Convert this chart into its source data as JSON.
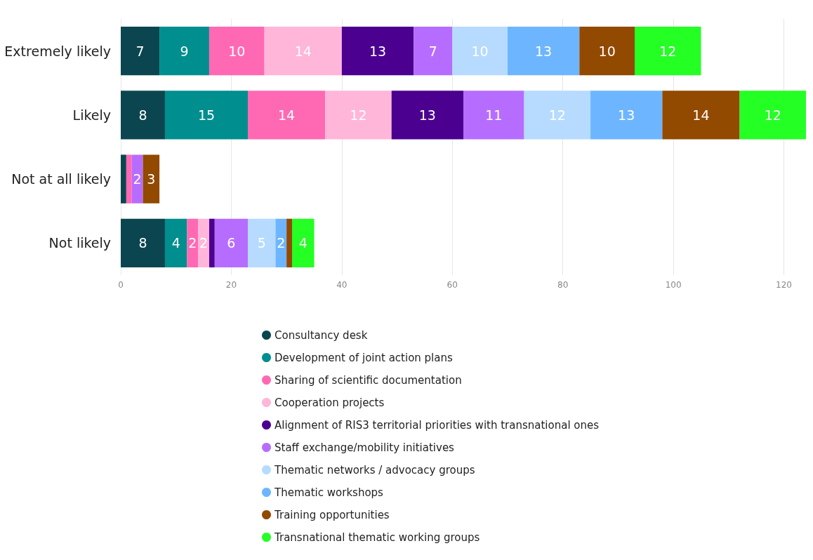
{
  "chart_data": {
    "type": "bar",
    "orientation": "horizontal",
    "stacked": true,
    "categories": [
      "Extremely likely",
      "Likely",
      "Not at all likely",
      "Not likely"
    ],
    "xlim": [
      0,
      124
    ],
    "xticks": [
      0,
      20,
      40,
      60,
      80,
      100,
      120
    ],
    "grid": "x",
    "legend": "bottom",
    "series": [
      {
        "name": "Consultancy desk",
        "color": "#0b4650",
        "values": [
          7,
          8,
          1,
          8
        ],
        "value_labels": [
          "7",
          "8",
          null,
          "8"
        ]
      },
      {
        "name": "Development of joint action plans",
        "color": "#008e8e",
        "values": [
          9,
          15,
          null,
          4
        ],
        "value_labels": [
          "9",
          "15",
          null,
          "4"
        ]
      },
      {
        "name": "Sharing of scientific documentation",
        "color": "#ff69b4",
        "values": [
          10,
          14,
          1,
          2
        ],
        "value_labels": [
          "10",
          "14",
          null,
          "2"
        ]
      },
      {
        "name": "Cooperation projects",
        "color": "#ffb6d9",
        "values": [
          14,
          12,
          null,
          2
        ],
        "value_labels": [
          "14",
          "12",
          null,
          "2"
        ]
      },
      {
        "name": "Alignment of RIS3 territorial priorities with transnational ones",
        "color": "#4b0090",
        "values": [
          13,
          13,
          null,
          1
        ],
        "value_labels": [
          "13",
          "13",
          null,
          null
        ]
      },
      {
        "name": "Staff exchange/mobility initiatives",
        "color": "#b66dff",
        "values": [
          7,
          11,
          2,
          6
        ],
        "value_labels": [
          "7",
          "11",
          "2",
          "6"
        ]
      },
      {
        "name": "Thematic networks / advocacy groups",
        "color": "#b6dbff",
        "values": [
          10,
          12,
          null,
          5
        ],
        "value_labels": [
          "10",
          "12",
          null,
          "5"
        ]
      },
      {
        "name": "Thematic workshops",
        "color": "#6db6ff",
        "values": [
          13,
          13,
          null,
          2
        ],
        "value_labels": [
          "13",
          "13",
          null,
          "2"
        ]
      },
      {
        "name": "Training opportunities",
        "color": "#924900",
        "values": [
          10,
          14,
          3,
          1
        ],
        "value_labels": [
          "10",
          "14",
          "3",
          null
        ]
      },
      {
        "name": "Transnational thematic working groups",
        "color": "#24ff24",
        "values": [
          12,
          12,
          null,
          4
        ],
        "value_labels": [
          "12",
          "12",
          null,
          "4"
        ]
      }
    ]
  }
}
